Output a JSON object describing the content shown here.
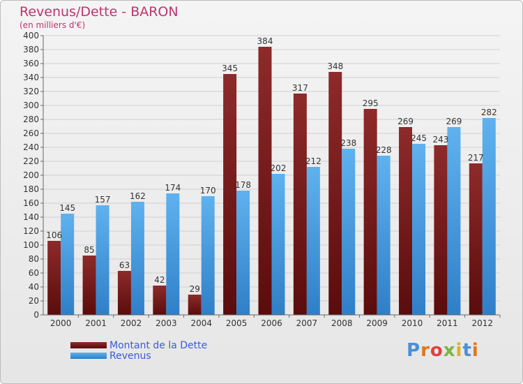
{
  "title": "Revenus/Dette - BARON",
  "subtitle": "(en milliers d'€)",
  "legend": {
    "dette_label": "Montant de la Dette",
    "revenus_label": "Revenus"
  },
  "logo_text": "Proxiti",
  "colors": {
    "dette": "#7a1a1a",
    "revenus": "#4ea3e6",
    "title": "#c0336e",
    "legend_text": "#3b5bd6"
  },
  "chart_data": {
    "type": "bar",
    "title": "Revenus/Dette - BARON",
    "ylabel": "(en milliers d'€)",
    "xlabel": "",
    "ylim": [
      0,
      400
    ],
    "ytick_step": 20,
    "categories": [
      "2000",
      "2001",
      "2002",
      "2003",
      "2004",
      "2005",
      "2006",
      "2007",
      "2008",
      "2009",
      "2010",
      "2011",
      "2012"
    ],
    "series": [
      {
        "name": "Montant de la Dette",
        "values": [
          106,
          85,
          63,
          42,
          29,
          345,
          384,
          317,
          348,
          295,
          269,
          243,
          217
        ]
      },
      {
        "name": "Revenus",
        "values": [
          145,
          157,
          162,
          174,
          170,
          178,
          202,
          212,
          238,
          228,
          245,
          269,
          282
        ]
      }
    ]
  }
}
